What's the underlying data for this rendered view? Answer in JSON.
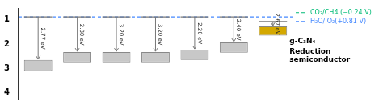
{
  "chart_data": {
    "type": "bar",
    "categories": [
      null,
      null,
      null,
      null,
      null,
      null,
      null
    ],
    "series": [
      {
        "type": "bar",
        "colors": [
          "#c8c8c8",
          "#c8c8c8",
          "#c8c8c8",
          "#c8c8c8",
          "#c8c8c8",
          "#c8c8c8",
          "#d4a800"
        ],
        "values": [
          [
            2.65,
            3.1
          ],
          [
            2.33,
            2.75
          ],
          [
            2.33,
            2.75
          ],
          [
            2.33,
            2.75
          ],
          [
            2.23,
            2.65
          ],
          [
            1.93,
            2.35
          ],
          [
            1.27,
            1.65
          ]
        ]
      },
      {
        "type": "line",
        "color": "#777777",
        "marker": "hline",
        "line_style": "none",
        "values": [
          0.88,
          0.88,
          0.88,
          0.88,
          0.88,
          0.88,
          1.07
        ],
        "arrow_labels": [
          "2.77 eV",
          "2.80 eV",
          "3.20 eV",
          "3.20 eV",
          "2.20 eV",
          "2.40 eV",
          "2.67 eV"
        ]
      }
    ],
    "annotations": [
      {
        "text": "g-C₃N₄"
      },
      {
        "text": "Reduction\nsemiconductor"
      },
      {
        "text": "CO₂/CH4 (−0.24 V)",
        "color": "#00bb77",
        "line_style": "dashed"
      },
      {
        "text": "H₂O/ O₂(+0.81 V)",
        "color": "#4488ff",
        "line_style": "dashed",
        "y": 0.88
      }
    ],
    "ylim": [
      4.3,
      0.55
    ],
    "yticks": [
      1,
      2,
      3,
      4
    ],
    "grid": false
  }
}
